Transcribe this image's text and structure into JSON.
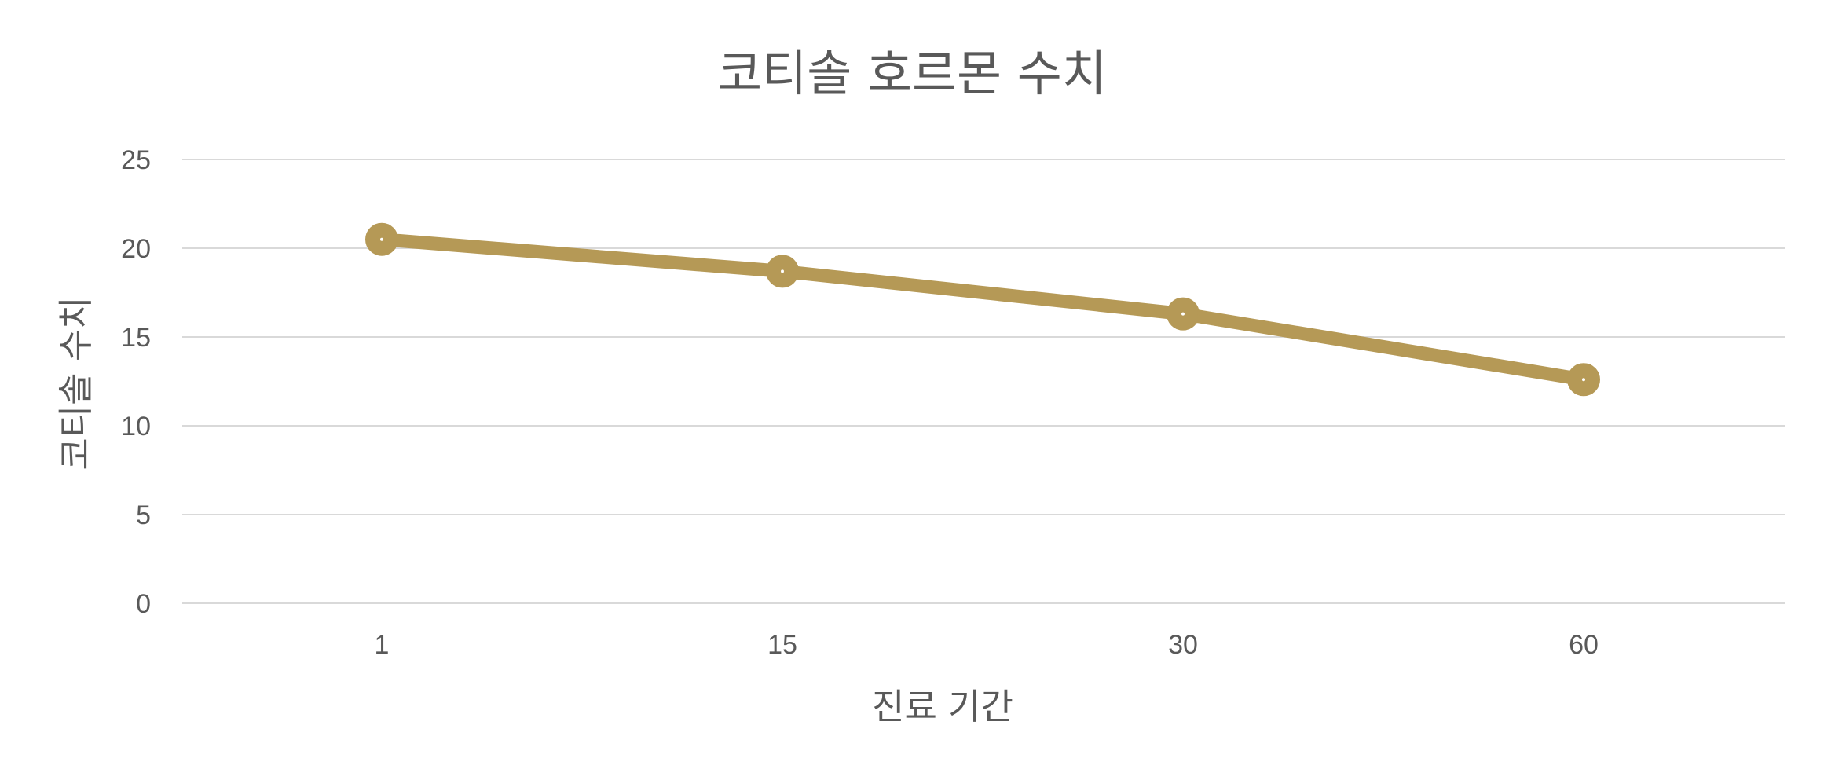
{
  "chart_data": {
    "type": "line",
    "title": "코티솔 호르몬 수치",
    "xlabel": "진료 기간",
    "ylabel": "코티솔 수치",
    "categories": [
      "1",
      "15",
      "30",
      "60"
    ],
    "series": [
      {
        "values": [
          20.5,
          18.7,
          16.3,
          12.6
        ]
      }
    ],
    "ylim": [
      0,
      25
    ],
    "yticks": [
      "0",
      "5",
      "10",
      "15",
      "20",
      "25"
    ],
    "grid": true,
    "legend": "none",
    "colors": {
      "line": "#B59956",
      "grid": "#D9D9D9",
      "text": "#595959"
    }
  }
}
